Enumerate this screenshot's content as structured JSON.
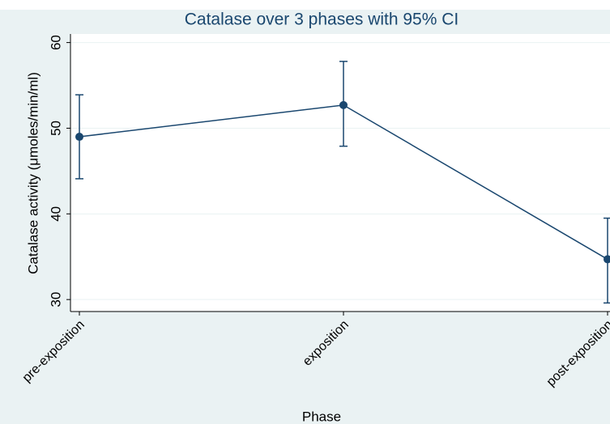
{
  "chart_data": {
    "type": "line",
    "title": "Catalase over 3 phases with 95% CI",
    "x_label": "Phase",
    "y_label": "Catalase activity (μmoles/min/ml)",
    "categories": [
      "pre-exposition",
      "exposition",
      "post-exposition"
    ],
    "series": [
      {
        "color": "#1a476f",
        "values": [
          49.0,
          52.7,
          34.7
        ],
        "ci_lower": [
          44.1,
          47.9,
          29.6
        ],
        "ci_upper": [
          53.9,
          57.8,
          39.5
        ]
      }
    ],
    "ylim": [
      28.6,
      61
    ],
    "yticks": [
      30,
      40,
      50,
      60
    ],
    "grid": true
  }
}
